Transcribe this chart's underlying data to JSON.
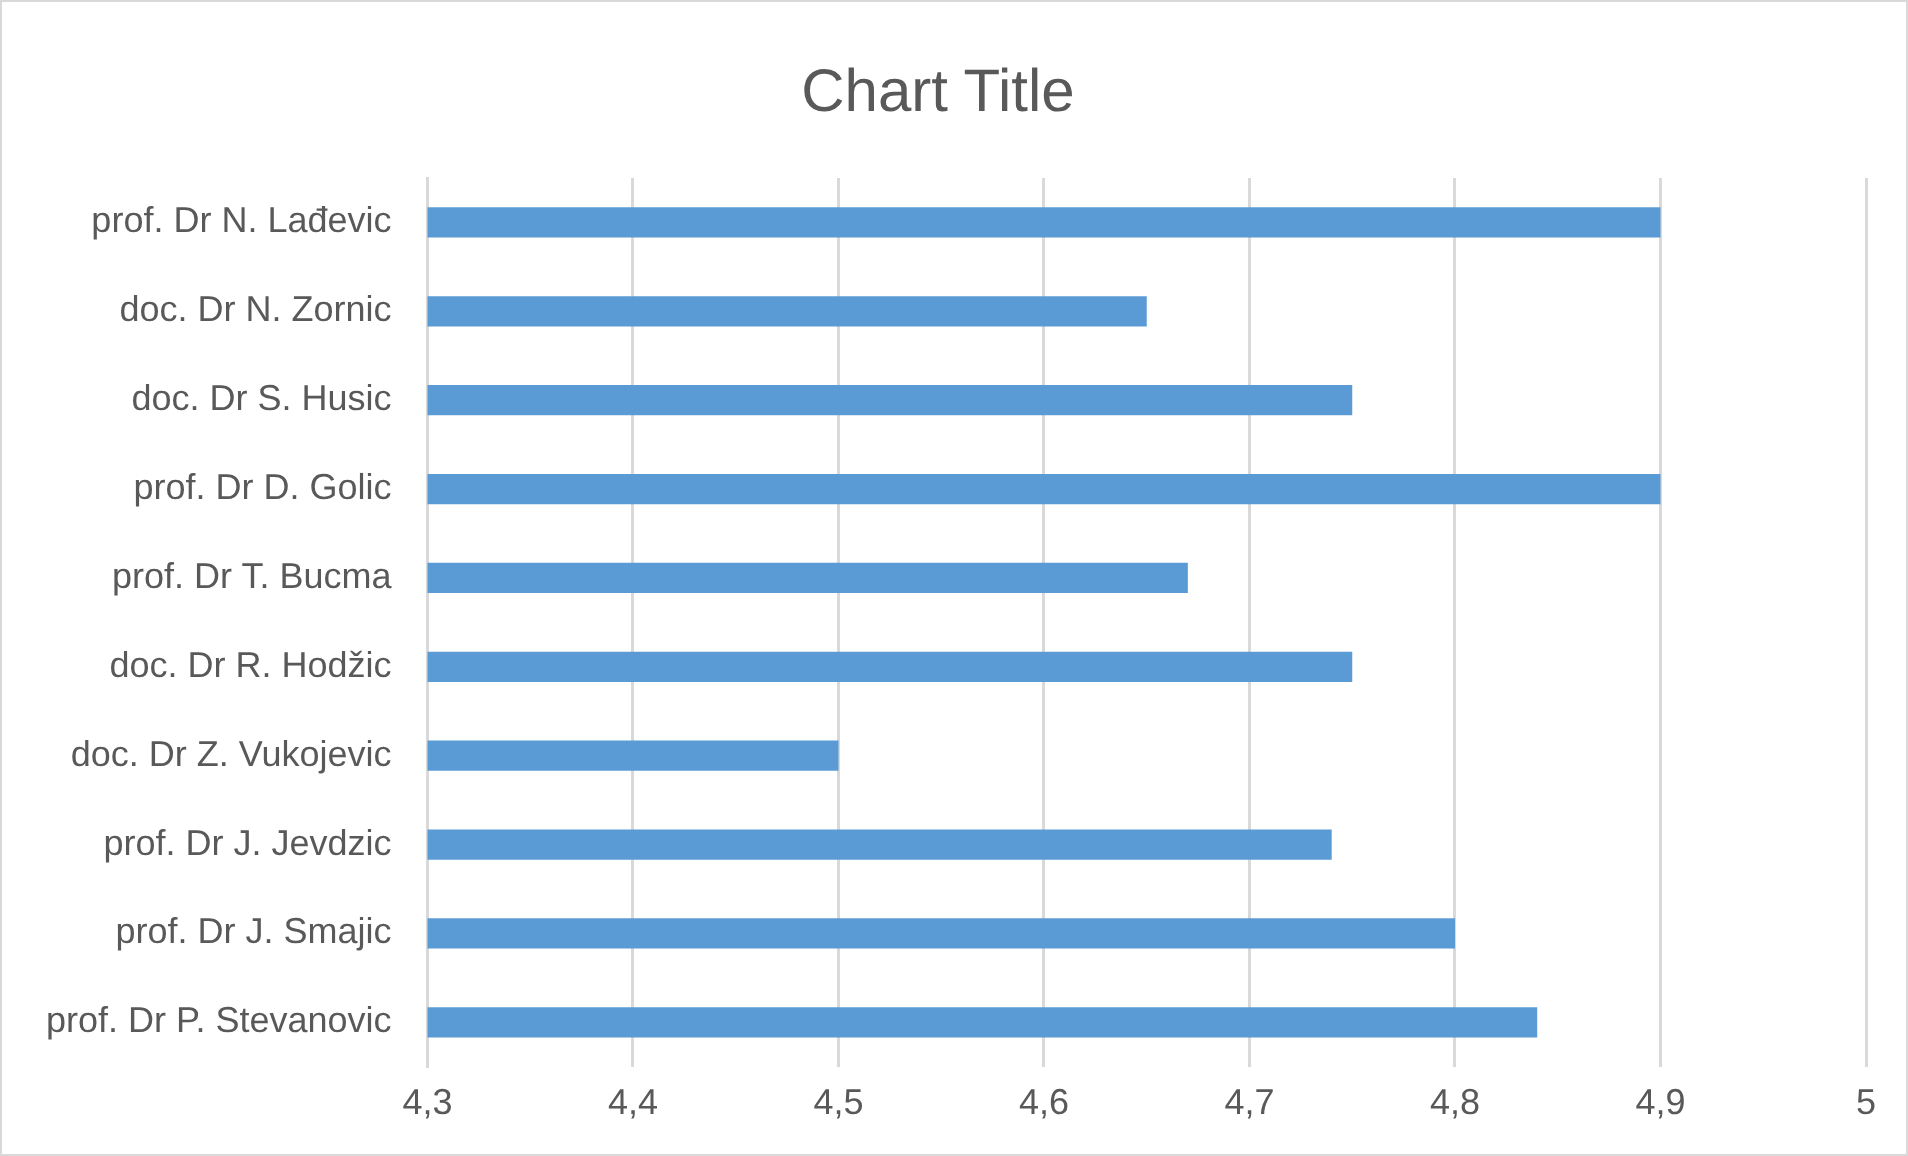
{
  "chart_data": {
    "type": "bar",
    "orientation": "horizontal",
    "title": "Chart Title",
    "categories": [
      "prof. Dr N. Lađevic",
      "doc. Dr N. Zornic",
      "doc. Dr S. Husic",
      "prof. Dr D. Golic",
      "prof. Dr T. Bucma",
      "doc. Dr R. Hodžic",
      "doc. Dr Z. Vukojevic",
      "prof. Dr J. Jevdzic",
      "prof. Dr J. Smajic",
      "prof. Dr P. Stevanovic"
    ],
    "values": [
      4.9,
      4.65,
      4.75,
      4.9,
      4.67,
      4.75,
      4.5,
      4.74,
      4.8,
      4.84
    ],
    "color": "#5b9bd5",
    "xlim": [
      4.3,
      5
    ],
    "xticks": [
      {
        "value": 4.3,
        "label": "4,3"
      },
      {
        "value": 4.4,
        "label": "4,4"
      },
      {
        "value": 4.5,
        "label": "4,5"
      },
      {
        "value": 4.6,
        "label": "4,6"
      },
      {
        "value": 4.7,
        "label": "4,7"
      },
      {
        "value": 4.8,
        "label": "4,8"
      },
      {
        "value": 4.9,
        "label": "4,9"
      },
      {
        "value": 5,
        "label": "5"
      }
    ],
    "grid": "x",
    "legend": false
  }
}
